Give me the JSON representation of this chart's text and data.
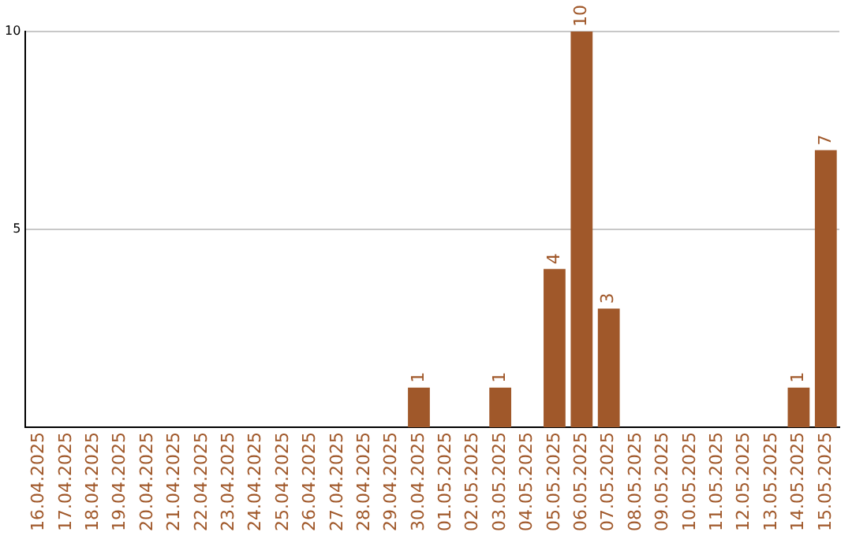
{
  "chart_data": {
    "type": "bar",
    "categories": [
      "16.04.2025",
      "17.04.2025",
      "18.04.2025",
      "19.04.2025",
      "20.04.2025",
      "21.04.2025",
      "22.04.2025",
      "23.04.2025",
      "24.04.2025",
      "25.04.2025",
      "26.04.2025",
      "27.04.2025",
      "28.04.2025",
      "29.04.2025",
      "30.04.2025",
      "01.05.2025",
      "02.05.2025",
      "03.05.2025",
      "04.05.2025",
      "05.05.2025",
      "06.05.2025",
      "07.05.2025",
      "08.05.2025",
      "09.05.2025",
      "10.05.2025",
      "11.05.2025",
      "12.05.2025",
      "13.05.2025",
      "14.05.2025",
      "15.05.2025"
    ],
    "values": [
      0,
      0,
      0,
      0,
      0,
      0,
      0,
      0,
      0,
      0,
      0,
      0,
      0,
      0,
      1,
      0,
      0,
      1,
      0,
      4,
      10,
      3,
      0,
      0,
      0,
      0,
      0,
      0,
      1,
      7
    ],
    "value_labels": [
      null,
      null,
      null,
      null,
      null,
      null,
      null,
      null,
      null,
      null,
      null,
      null,
      null,
      null,
      "1",
      null,
      null,
      "1",
      null,
      "4",
      "10",
      "3",
      null,
      null,
      null,
      null,
      null,
      null,
      "1",
      "7"
    ],
    "color": "#a0582a",
    "ylim": [
      0,
      10
    ],
    "yticks": [
      5,
      10
    ],
    "grid": "y",
    "legend": false
  }
}
